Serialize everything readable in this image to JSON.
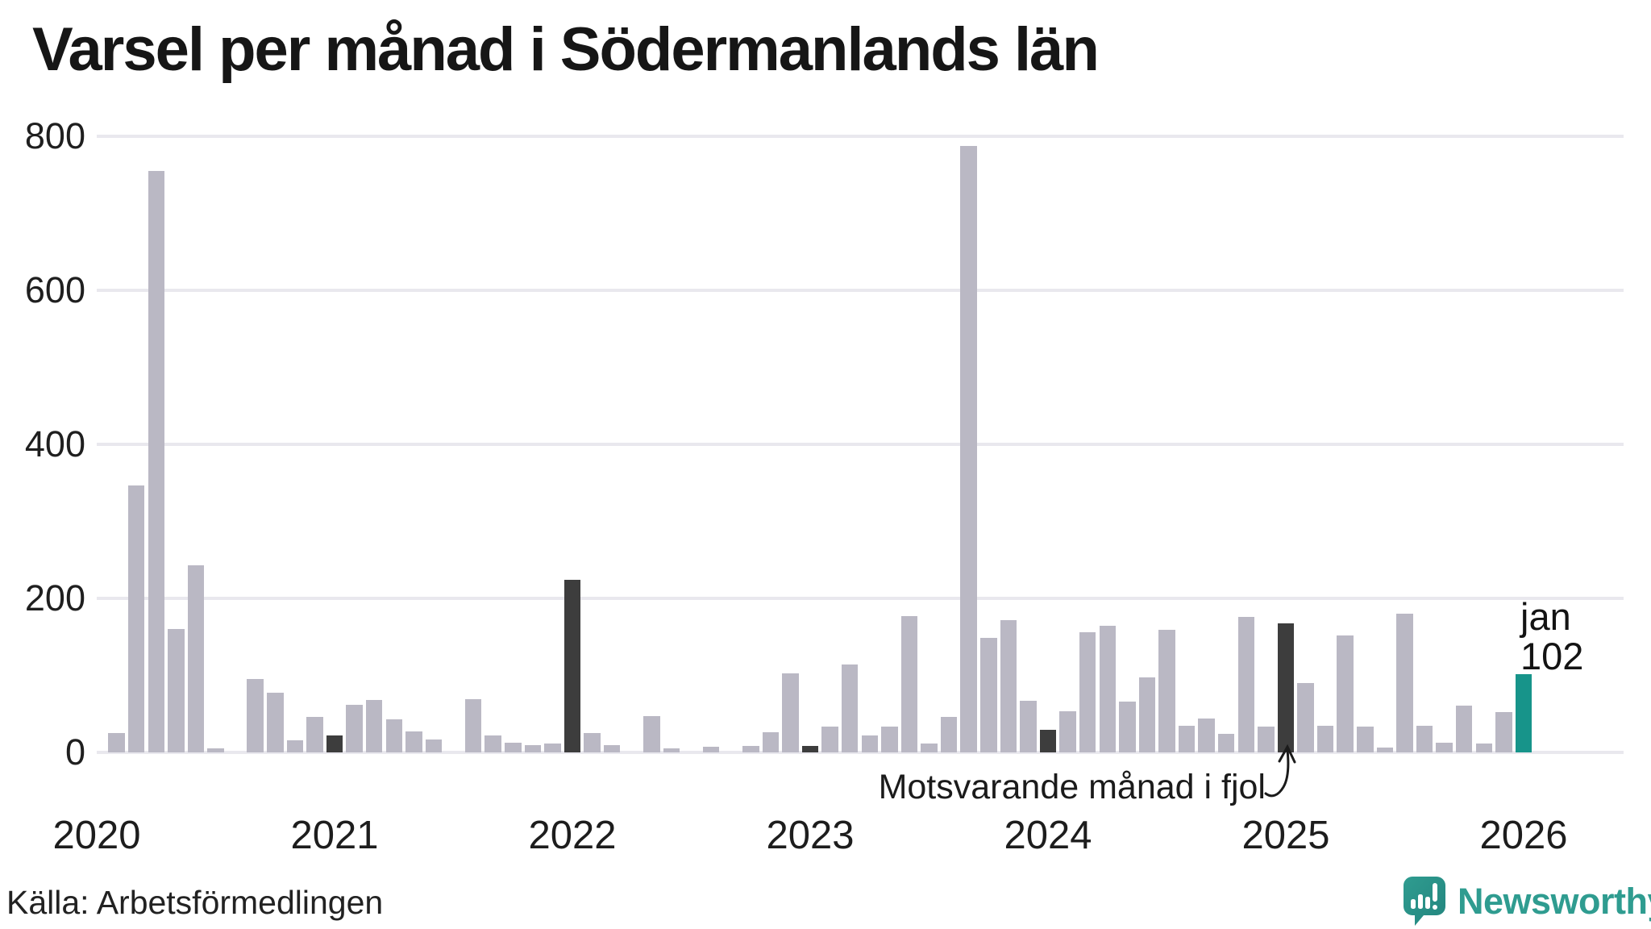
{
  "title": "Varsel per månad i Södermanlands län",
  "source": "Källa: Arbetsförmedlingen",
  "annotation": {
    "label": "Motsvarande månad i fjol"
  },
  "current_point_label": {
    "line1": "jan",
    "line2": "102"
  },
  "brand": {
    "name": "Newsworthy"
  },
  "colors": {
    "bar_light": "#bab8c4",
    "bar_dark": "#3d3d3d",
    "bar_current": "#17948a",
    "gridline": "#e9e8ee",
    "brand_teal": "#2f9c90",
    "text": "#1b1b1b"
  },
  "chart_data": {
    "type": "bar",
    "title": "Varsel per månad i Södermanlands län",
    "xlabel": "",
    "ylabel": "",
    "ylim": [
      0,
      800
    ],
    "y_ticks": [
      0,
      200,
      400,
      600,
      800
    ],
    "x_tick_labels": [
      "2020",
      "2021",
      "2022",
      "2023",
      "2024",
      "2025",
      "2026"
    ],
    "grid": "horizontal",
    "legend": "none",
    "bar_color_rule": {
      "january": "dark",
      "latest": "teal",
      "other": "light"
    },
    "annotation_target": "2025-01",
    "latest": {
      "month": "2026-01",
      "value": 102
    },
    "months": [
      "2020-02",
      "2020-03",
      "2020-04",
      "2020-05",
      "2020-06",
      "2020-07",
      "2020-08",
      "2020-09",
      "2020-10",
      "2020-11",
      "2020-12",
      "2021-01",
      "2021-02",
      "2021-03",
      "2021-04",
      "2021-05",
      "2021-06",
      "2021-07",
      "2021-08",
      "2021-09",
      "2021-10",
      "2021-11",
      "2021-12",
      "2022-01",
      "2022-02",
      "2022-03",
      "2022-04",
      "2022-05",
      "2022-06",
      "2022-07",
      "2022-08",
      "2022-09",
      "2022-10",
      "2022-11",
      "2022-12",
      "2023-01",
      "2023-02",
      "2023-03",
      "2023-04",
      "2023-05",
      "2023-06",
      "2023-07",
      "2023-08",
      "2023-09",
      "2023-10",
      "2023-11",
      "2023-12",
      "2024-01",
      "2024-02",
      "2024-03",
      "2024-04",
      "2024-05",
      "2024-06",
      "2024-07",
      "2024-08",
      "2024-09",
      "2024-10",
      "2024-11",
      "2024-12",
      "2025-01",
      "2025-02",
      "2025-03",
      "2025-04",
      "2025-05",
      "2025-06",
      "2025-07",
      "2025-08",
      "2025-09",
      "2025-10",
      "2025-11",
      "2025-12",
      "2026-01"
    ],
    "values": [
      25,
      347,
      755,
      160,
      243,
      5,
      0,
      95,
      78,
      16,
      46,
      22,
      62,
      68,
      43,
      27,
      17,
      0,
      69,
      22,
      13,
      9,
      11,
      224,
      25,
      9,
      0,
      47,
      5,
      0,
      7,
      0,
      8,
      26,
      103,
      8,
      33,
      114,
      22,
      33,
      177,
      11,
      46,
      787,
      149,
      172,
      67,
      29,
      53,
      156,
      164,
      66,
      97,
      159,
      35,
      44,
      24,
      176,
      33,
      168,
      90,
      35,
      152,
      33,
      6,
      180,
      35,
      13,
      61,
      12,
      52,
      102
    ]
  }
}
